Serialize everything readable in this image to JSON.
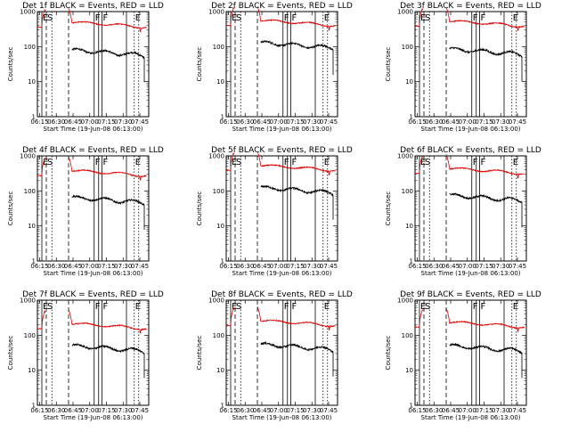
{
  "chart_data": [
    {
      "type": "line",
      "title": "Det 1f BLACK = Events, RED = LLD",
      "xlabel": "Start Time (19-Jun-08 06:13:00)",
      "ylabel": "Counts/sec",
      "black_level": 80,
      "red_level": 420
    },
    {
      "type": "line",
      "title": "Det 2f BLACK = Events, RED = LLD",
      "xlabel": "Start Time (19-Jun-08 06:13:00)",
      "ylabel": "Counts/sec",
      "black_level": 130,
      "red_level": 470
    },
    {
      "type": "line",
      "title": "Det 3f BLACK = Events, RED = LLD",
      "xlabel": "Start Time (19-Jun-08 06:13:00)",
      "ylabel": "Counts/sec",
      "black_level": 85,
      "red_level": 450
    },
    {
      "type": "line",
      "title": "Det 4f BLACK = Events, RED = LLD",
      "xlabel": "Start Time (19-Jun-08 06:13:00)",
      "ylabel": "Counts/sec",
      "black_level": 65,
      "red_level": 320
    },
    {
      "type": "line",
      "title": "Det 5f BLACK = Events, RED = LLD",
      "xlabel": "Start Time (19-Jun-08 06:13:00)",
      "ylabel": "Counts/sec",
      "black_level": 125,
      "red_level": 450
    },
    {
      "type": "line",
      "title": "Det 6f BLACK = Events, RED = LLD",
      "xlabel": "Start Time (19-Jun-08 06:13:00)",
      "ylabel": "Counts/sec",
      "black_level": 75,
      "red_level": 370
    },
    {
      "type": "line",
      "title": "Det 7f BLACK = Events, RED = LLD",
      "xlabel": "Start Time (19-Jun-08 06:13:00)",
      "ylabel": "Counts/sec",
      "black_level": 50,
      "red_level": 180
    },
    {
      "type": "line",
      "title": "Det 8f BLACK = Events, RED = LLD",
      "xlabel": "Start Time (19-Jun-08 06:13:00)",
      "ylabel": "Counts/sec",
      "black_level": 55,
      "red_level": 220
    },
    {
      "type": "line",
      "title": "Det 9f BLACK = Events, RED = LLD",
      "xlabel": "Start Time (19-Jun-08 06:13:00)",
      "ylabel": "Counts/sec",
      "black_level": 50,
      "red_level": 200
    }
  ],
  "x_ticks": [
    "06:15",
    "06:30",
    "06:45",
    "07:00",
    "07:15",
    "07:30",
    "07:45"
  ],
  "y_ticks": [
    "1000",
    "100",
    "10",
    "1"
  ],
  "flag_labels": {
    "E": "E",
    "S": "S",
    "F": "F"
  },
  "x_range": [
    "06:13",
    "07:53"
  ],
  "y_range": [
    1,
    1000
  ],
  "y_scale": "log",
  "colors": {
    "events": "#000000",
    "lld": "#dd0000"
  }
}
